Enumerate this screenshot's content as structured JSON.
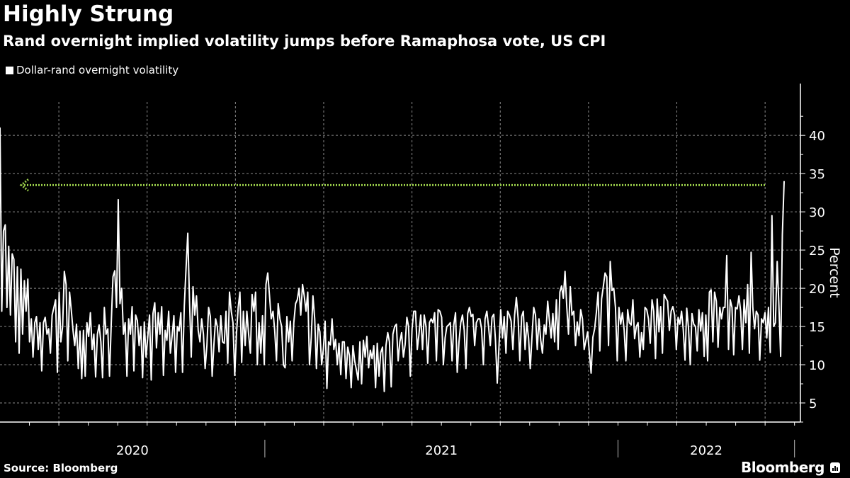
{
  "header": {
    "title": "Highly Strung",
    "subtitle": "Rand overnight implied volatility jumps before Ramaphosa vote, US CPI"
  },
  "footer": {
    "source": "Source: Bloomberg",
    "brand": "Bloomberg"
  },
  "colors": {
    "background": "#000000",
    "series": "#ffffff",
    "annotation_arrow": "#9acd4a",
    "grid": "#8a8a8a"
  },
  "chart_data": {
    "type": "line",
    "title": "Highly Strung",
    "subtitle": "Rand overnight implied volatility jumps before Ramaphosa vote, US CPI",
    "xlabel": "",
    "ylabel": "Percent",
    "ylim": [
      2.5,
      44
    ],
    "yticks": [
      5,
      10,
      15,
      20,
      25,
      30,
      35,
      40
    ],
    "xlim_months": [
      "2020-04",
      "2022-07"
    ],
    "year_labels": [
      "2020",
      "2021",
      "2022"
    ],
    "grid": true,
    "legend": {
      "position": "top-left",
      "entries": [
        "Dollar-rand overnight volatility"
      ]
    },
    "annotation": {
      "type": "horizontal-arrow",
      "value": 33.5,
      "direction": "left",
      "note": "dotted line marking latest level"
    },
    "series": [
      {
        "name": "Dollar-rand overnight volatility",
        "x_start": "2020-04-01",
        "x_end": "2022-06-13",
        "values": [
          41,
          17,
          27.5,
          28.3,
          17.5,
          25.5,
          16.5,
          24.5,
          23.8,
          13,
          22.8,
          11.5,
          22.5,
          14,
          21,
          17,
          21.2,
          13,
          16,
          11,
          15.5,
          16.3,
          12,
          15.5,
          9.2,
          15.5,
          16.2,
          14,
          14.7,
          11.5,
          16.5,
          17.5,
          18.5,
          9,
          19.5,
          13,
          15,
          22.2,
          20.5,
          10.5,
          19.5,
          17.2,
          14.5,
          12.5,
          15.3,
          9.5,
          14.4,
          8.2,
          14.5,
          8.5,
          15.5,
          13.7,
          16.8,
          12,
          14,
          8.4,
          14,
          15.2,
          13,
          8.3,
          17.5,
          14,
          14.7,
          8.5,
          15.5,
          21.5,
          22.3,
          17.5,
          31.6,
          18,
          20,
          14,
          15.5,
          8.5,
          16,
          14,
          17.6,
          9.2,
          16.5,
          15.8,
          12.5,
          15,
          8.3,
          15.6,
          11,
          13.6,
          16.5,
          8,
          16.7,
          18.1,
          12.2,
          16.8,
          14,
          17.6,
          8.6,
          14.5,
          13.2,
          17,
          11.5,
          13.8,
          16.4,
          9,
          15,
          14.4,
          16.8,
          9,
          17.7,
          22.5,
          27.2,
          18.5,
          11,
          20.2,
          16.5,
          19,
          14.5,
          13,
          16,
          14,
          9.5,
          12.5,
          17.5,
          16.3,
          8.5,
          12.5,
          16,
          15,
          11.7,
          16.4,
          13,
          12.8,
          17,
          10.2,
          19.5,
          17,
          15.5,
          8.6,
          14,
          17.5,
          19.5,
          10.3,
          17,
          12.5,
          17,
          14,
          11.5,
          19.2,
          17,
          19.5,
          10,
          15.5,
          11.5,
          16.4,
          10,
          20.5,
          22,
          19,
          16,
          17,
          14.5,
          10.5,
          18,
          16,
          15,
          10,
          9.6,
          16.3,
          13,
          15.7,
          10.5,
          15.5,
          18,
          18.5,
          20,
          16.5,
          20.5,
          19,
          17,
          19.5,
          10,
          13.5,
          19,
          16,
          9.5,
          15.3,
          14.3,
          10,
          12,
          15.7,
          6.9,
          13,
          12.6,
          16,
          12,
          13.3,
          10,
          12.8,
          8.7,
          13,
          13,
          8.2,
          12.3,
          11.2,
          7,
          12.5,
          10.5,
          9.3,
          8,
          13,
          7.5,
          13.2,
          11,
          13.7,
          9.6,
          11.9,
          10.8,
          12.5,
          7,
          12.8,
          8.5,
          11.6,
          12.3,
          6.5,
          12.5,
          14.2,
          13,
          7.1,
          14,
          15,
          15.3,
          10.5,
          13,
          14.2,
          11,
          12.6,
          16.2,
          15,
          8.5,
          14.7,
          17,
          17,
          12,
          14,
          16.5,
          12,
          16.5,
          15,
          10.2,
          15.5,
          16,
          15.5,
          16.8,
          10.5,
          17.2,
          17,
          16.2,
          10,
          13.5,
          15,
          15.2,
          15.5,
          10.5,
          15.2,
          16.8,
          9,
          13,
          15.5,
          16.5,
          14.5,
          9.5,
          16.7,
          17.5,
          16.3,
          16.6,
          12.5,
          15.5,
          16,
          16,
          14.7,
          10,
          16,
          17,
          15,
          12.5,
          16.2,
          16.6,
          13.2,
          7.6,
          12.5,
          17.2,
          13.5,
          16.3,
          11.5,
          17,
          16.5,
          15.7,
          12,
          16.5,
          18.8,
          16,
          10.5,
          16.3,
          17,
          12,
          15.5,
          13.5,
          9.5,
          13.8,
          17.5,
          16.5,
          12,
          16,
          13.2,
          11.5,
          15.2,
          14,
          18.3,
          15.8,
          13.5,
          16.7,
          13,
          18.5,
          12,
          19.5,
          20.3,
          18.7,
          22.2,
          17.5,
          14,
          20.2,
          16.5,
          17,
          12.5,
          15.6,
          13.8,
          17.2,
          16,
          12,
          13.2,
          14.3,
          11.5,
          8.9,
          13.6,
          14.7,
          16.8,
          19.5,
          11.8,
          18.6,
          20.2,
          22,
          21.5,
          12.5,
          23.5,
          19.7,
          20,
          17.5,
          10.5,
          17.5,
          15.3,
          16.8,
          14.5,
          10.5,
          17.2,
          15.5,
          15.2,
          18.5,
          13.4,
          15,
          15.5,
          11,
          14.2,
          12,
          17.5,
          17.2,
          16,
          12.8,
          18.5,
          17,
          10.8,
          18.6,
          14.3,
          17.6,
          11.5,
          19.2,
          18.7,
          18.3,
          14.5,
          17,
          17.6,
          16.5,
          12,
          16.2,
          15.3,
          17,
          14.6,
          10.6,
          17.4,
          14.8,
          10,
          16.7,
          15.3,
          15,
          11.8,
          17.2,
          14.4,
          16.8,
          11.1,
          16.5,
          10.5,
          19.5,
          19.8,
          13,
          19.5,
          18.3,
          12.3,
          17.5,
          16,
          17.5,
          17.5,
          24.3,
          12,
          18.5,
          17.5,
          11.3,
          17.5,
          17.3,
          19,
          17,
          12,
          18.5,
          15.5,
          20.5,
          11.5,
          24.7,
          17.5,
          14.7,
          17,
          16.5,
          10.6,
          16,
          15.5,
          16.8,
          13.5,
          17.5,
          11.6,
          29.5,
          15,
          15.5,
          23.5,
          17.8,
          11.1,
          27,
          34
        ]
      }
    ]
  }
}
